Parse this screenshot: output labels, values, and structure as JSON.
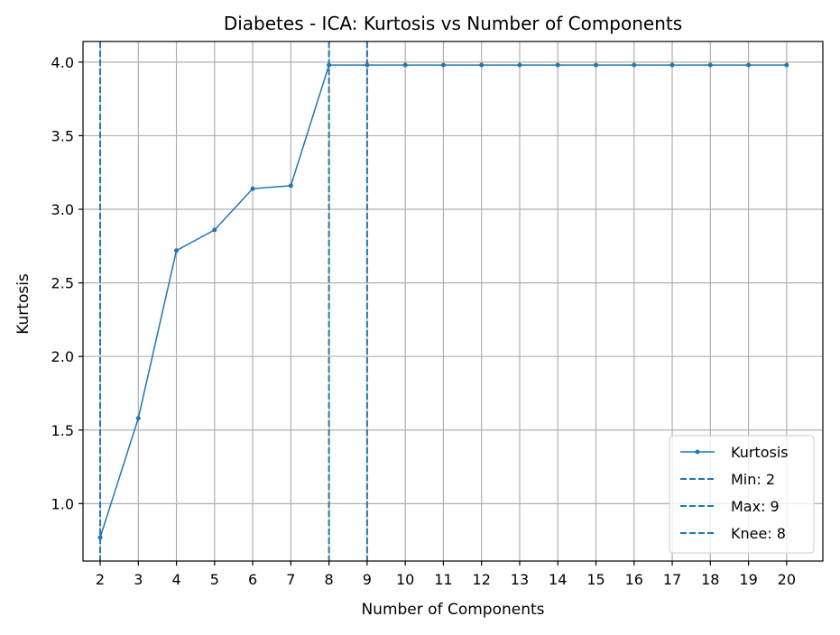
{
  "chart_data": {
    "type": "line",
    "title": "Diabetes - ICA: Kurtosis vs Number of Components",
    "xlabel": "Number of Components",
    "ylabel": "Kurtosis",
    "x": [
      2,
      3,
      4,
      5,
      6,
      7,
      8,
      9,
      10,
      11,
      12,
      13,
      14,
      15,
      16,
      17,
      18,
      19,
      20
    ],
    "series": [
      {
        "name": "Kurtosis",
        "color": "#1f77b4",
        "values": [
          0.77,
          1.58,
          2.72,
          2.86,
          3.14,
          3.16,
          3.98,
          3.98,
          3.98,
          3.98,
          3.98,
          3.98,
          3.98,
          3.98,
          3.98,
          3.98,
          3.98,
          3.98,
          3.98
        ]
      }
    ],
    "vlines": [
      {
        "label": "Min: 2",
        "x": 2,
        "color": "#1f77b4"
      },
      {
        "label": "Max: 9",
        "x": 9,
        "color": "#1f77b4"
      },
      {
        "label": "Knee: 8",
        "x": 8,
        "color": "#1f77b4"
      }
    ],
    "xlim": [
      1.55,
      20.95
    ],
    "ylim": [
      0.61,
      4.14
    ],
    "xticks": [
      2,
      3,
      4,
      5,
      6,
      7,
      8,
      9,
      10,
      11,
      12,
      13,
      14,
      15,
      16,
      17,
      18,
      19,
      20
    ],
    "yticks": [
      1.0,
      1.5,
      2.0,
      2.5,
      3.0,
      3.5,
      4.0
    ],
    "ytick_labels": [
      "1.0",
      "1.5",
      "2.0",
      "2.5",
      "3.0",
      "3.5",
      "4.0"
    ],
    "grid": true,
    "legend_position": "lower-right"
  }
}
